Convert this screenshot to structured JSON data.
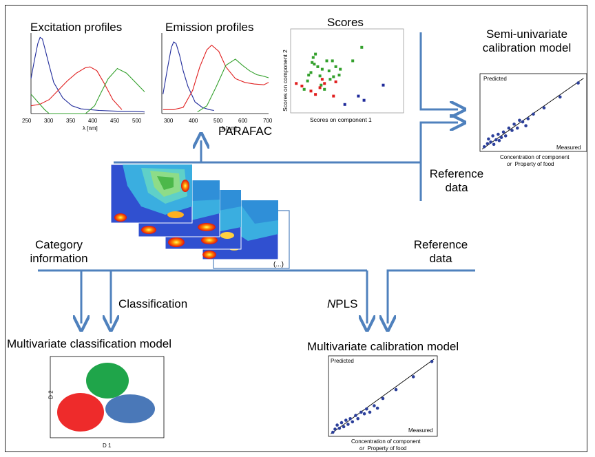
{
  "panels": {
    "excitation": {
      "title": "Excitation profiles",
      "xlabel": "λ [nm]",
      "x_ticks": [
        "250",
        "300",
        "350",
        "400",
        "450",
        "500"
      ]
    },
    "emission": {
      "title": "Emission profiles",
      "xlabel": "λ [nm]",
      "x_ticks": [
        "300",
        "400",
        "500",
        "600",
        "700"
      ]
    },
    "scores": {
      "title": "Scores",
      "xlabel": "Scores on component 1",
      "ylabel": "Scores on component 2"
    },
    "semi": {
      "title_line1": "Semi-univariate",
      "title_line2": "calibration  model",
      "predicted": "Predicted",
      "measured": "Measured",
      "caption_line1": "Concentration of component",
      "caption_or": "or",
      "caption_line2": "Property of food"
    },
    "multical": {
      "title": "Multivariate calibration  model",
      "predicted": "Predicted",
      "measured": "Measured",
      "caption_line1": "Concentration of component",
      "caption_or": "or",
      "caption_line2": "Property of food"
    },
    "classif": {
      "title": "Multivariate classification  model",
      "xlabel": "D 1",
      "ylabel": "D 2"
    }
  },
  "labels": {
    "parafac": "PARAFAC",
    "reference_top_1": "Reference",
    "reference_top_2": "data",
    "category_1": "Category",
    "category_2": "information",
    "reference_bottom_1": "Reference",
    "reference_bottom_2": "data",
    "classification": "Classification",
    "npls_prefix": "N",
    "npls_suffix": "PLS",
    "ellipsis": "(...)"
  },
  "colors": {
    "arrow": "#4f81bd",
    "blue": "#1f2a9a",
    "red": "#e01e1e",
    "green": "#33a02c",
    "ellipse_green": "#1fa54a",
    "ellipse_red": "#ee2b2b",
    "ellipse_blue": "#4a78b8"
  },
  "chart_data": [
    {
      "type": "line",
      "panel": "excitation",
      "xlim": [
        250,
        500
      ],
      "series": [
        {
          "color": "blue",
          "x": [
            250,
            258,
            265,
            270,
            275,
            280,
            290,
            300,
            320,
            340,
            360,
            380,
            400,
            440,
            480,
            500
          ],
          "y": [
            0.45,
            0.7,
            0.9,
            0.98,
            0.96,
            0.85,
            0.62,
            0.4,
            0.2,
            0.1,
            0.06,
            0.05,
            0.04,
            0.03,
            0.03,
            0.02
          ]
        },
        {
          "color": "red",
          "x": [
            250,
            270,
            290,
            310,
            330,
            350,
            370,
            380,
            395,
            410,
            430,
            450
          ],
          "y": [
            0.1,
            0.12,
            0.18,
            0.3,
            0.42,
            0.52,
            0.59,
            0.6,
            0.55,
            0.4,
            0.18,
            0.05
          ]
        },
        {
          "color": "green",
          "x": [
            250,
            265,
            280,
            290,
            310,
            340,
            370,
            390,
            405,
            420,
            440,
            460,
            480,
            500
          ],
          "y": [
            0.25,
            0.15,
            0.05,
            0.0,
            0.0,
            0.0,
            0.0,
            0.1,
            0.28,
            0.45,
            0.58,
            0.52,
            0.4,
            0.28
          ]
        }
      ]
    },
    {
      "type": "line",
      "panel": "emission",
      "xlim": [
        250,
        700
      ],
      "series": [
        {
          "color": "blue",
          "x": [
            255,
            275,
            290,
            300,
            310,
            325,
            340,
            360,
            390,
            420,
            450,
            470
          ],
          "y": [
            0.25,
            0.6,
            0.85,
            0.92,
            0.9,
            0.75,
            0.55,
            0.35,
            0.15,
            0.08,
            0.05,
            0.04
          ]
        },
        {
          "color": "red",
          "x": [
            255,
            300,
            340,
            380,
            410,
            440,
            460,
            490,
            520,
            560,
            600,
            640,
            680,
            700
          ],
          "y": [
            0.05,
            0.05,
            0.08,
            0.3,
            0.6,
            0.82,
            0.88,
            0.8,
            0.6,
            0.45,
            0.4,
            0.38,
            0.37,
            0.4
          ]
        },
        {
          "color": "green",
          "x": [
            400,
            440,
            480,
            520,
            560,
            590,
            620,
            650,
            680,
            700
          ],
          "y": [
            0.02,
            0.1,
            0.35,
            0.62,
            0.7,
            0.62,
            0.55,
            0.5,
            0.48,
            0.46
          ]
        }
      ]
    },
    {
      "type": "scatter",
      "panel": "scores",
      "series": [
        {
          "color": "green",
          "x": [
            0.12,
            0.15,
            0.18,
            0.21,
            0.24,
            0.28,
            0.32,
            0.37,
            0.38,
            0.4,
            0.43,
            0.55,
            0.63,
            0.16,
            0.22,
            0.27,
            0.3,
            0.34,
            0.2,
            0.26,
            0.35,
            0.44,
            0.19
          ],
          "y": [
            0.28,
            0.38,
            0.48,
            0.58,
            0.55,
            0.52,
            0.62,
            0.62,
            0.43,
            0.55,
            0.45,
            0.62,
            0.78,
            0.45,
            0.7,
            0.33,
            0.28,
            0.5,
            0.66,
            0.44,
            0.4,
            0.52,
            0.6
          ]
        },
        {
          "color": "red",
          "x": [
            0.05,
            0.1,
            0.18,
            0.22,
            0.26,
            0.28,
            0.3,
            0.38,
            0.4
          ],
          "y": [
            0.35,
            0.32,
            0.26,
            0.22,
            0.3,
            0.4,
            0.35,
            0.2,
            0.37
          ]
        },
        {
          "color": "blue",
          "x": [
            0.48,
            0.6,
            0.65,
            0.82
          ],
          "y": [
            0.1,
            0.2,
            0.15,
            0.33
          ]
        }
      ]
    },
    {
      "type": "scatter",
      "panel": "semi",
      "points": [
        [
          0.04,
          0.06
        ],
        [
          0.07,
          0.1
        ],
        [
          0.08,
          0.16
        ],
        [
          0.1,
          0.12
        ],
        [
          0.12,
          0.2
        ],
        [
          0.13,
          0.09
        ],
        [
          0.15,
          0.15
        ],
        [
          0.17,
          0.22
        ],
        [
          0.18,
          0.14
        ],
        [
          0.2,
          0.18
        ],
        [
          0.22,
          0.25
        ],
        [
          0.24,
          0.2
        ],
        [
          0.27,
          0.3
        ],
        [
          0.3,
          0.27
        ],
        [
          0.32,
          0.35
        ],
        [
          0.35,
          0.3
        ],
        [
          0.37,
          0.4
        ],
        [
          0.4,
          0.38
        ],
        [
          0.43,
          0.33
        ],
        [
          0.45,
          0.42
        ],
        [
          0.5,
          0.48
        ],
        [
          0.6,
          0.56
        ],
        [
          0.75,
          0.7
        ],
        [
          0.92,
          0.88
        ]
      ],
      "trend": [
        [
          0.02,
          0.03
        ],
        [
          0.97,
          0.94
        ]
      ]
    },
    {
      "type": "scatter",
      "panel": "multical",
      "points": [
        [
          0.04,
          0.05
        ],
        [
          0.06,
          0.09
        ],
        [
          0.08,
          0.14
        ],
        [
          0.1,
          0.1
        ],
        [
          0.12,
          0.17
        ],
        [
          0.14,
          0.12
        ],
        [
          0.16,
          0.2
        ],
        [
          0.18,
          0.15
        ],
        [
          0.2,
          0.22
        ],
        [
          0.22,
          0.18
        ],
        [
          0.25,
          0.26
        ],
        [
          0.27,
          0.22
        ],
        [
          0.3,
          0.3
        ],
        [
          0.33,
          0.28
        ],
        [
          0.35,
          0.34
        ],
        [
          0.38,
          0.3
        ],
        [
          0.42,
          0.38
        ],
        [
          0.45,
          0.35
        ],
        [
          0.5,
          0.47
        ],
        [
          0.62,
          0.58
        ],
        [
          0.78,
          0.74
        ],
        [
          0.95,
          0.93
        ]
      ],
      "trend": [
        [
          0.02,
          0.03
        ],
        [
          0.97,
          0.96
        ]
      ]
    }
  ]
}
